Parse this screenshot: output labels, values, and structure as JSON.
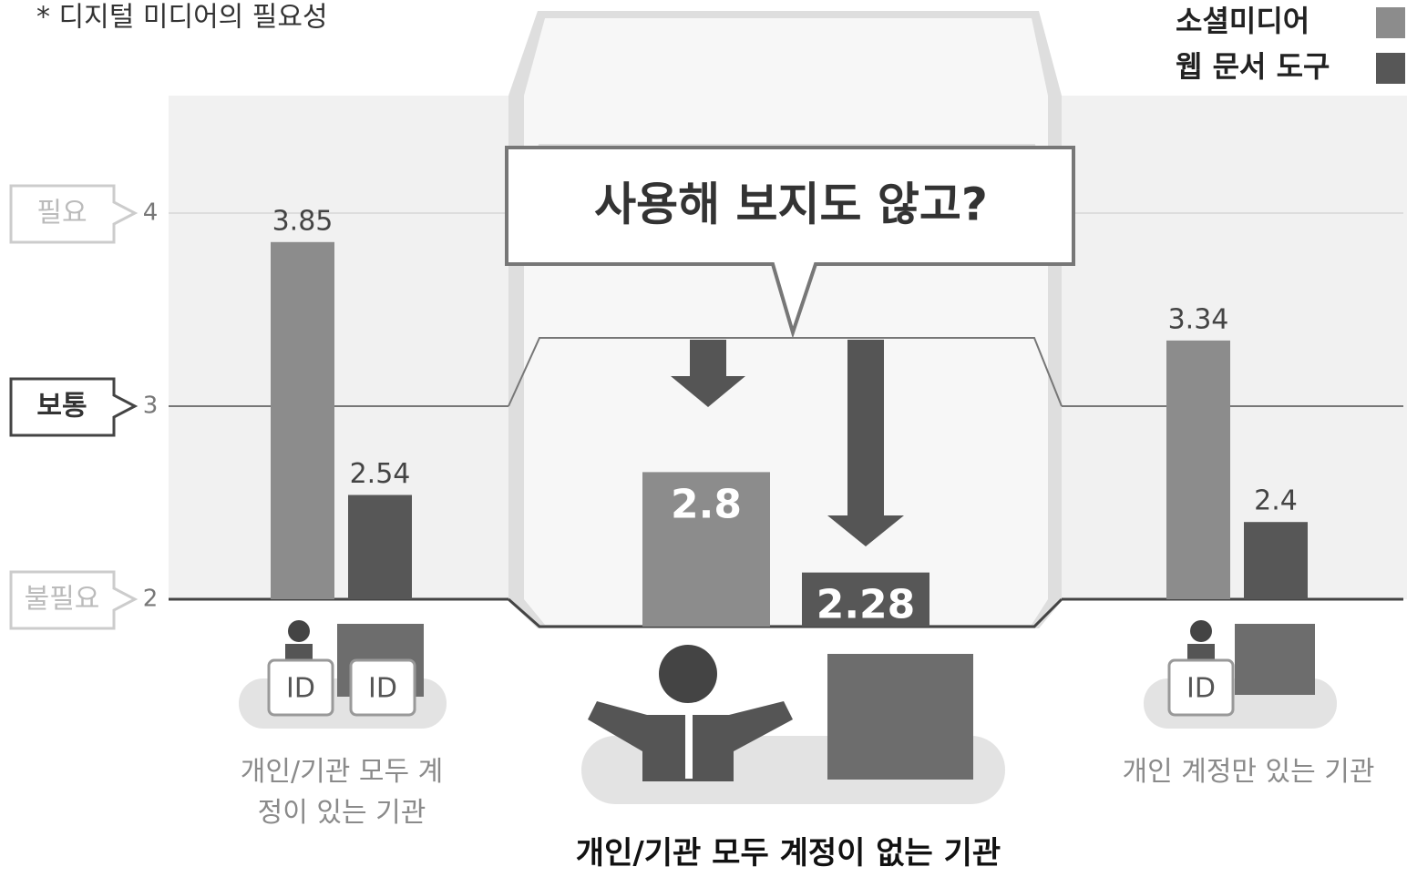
{
  "chart_data": {
    "type": "bar",
    "title": "* 디지털 미디어의 필요성",
    "annotation": "사용해 보지도 않고?",
    "categories": [
      "개인/기관 모두 계정이 있는 기관",
      "개인/기관 모두 계정이 없는 기관",
      "개인 계정만 있는 기관"
    ],
    "series": [
      {
        "name": "소셜미디어",
        "color": "#8c8c8c",
        "values": [
          3.85,
          2.8,
          3.34
        ]
      },
      {
        "name": "웹 문서 도구",
        "color": "#575757",
        "values": [
          2.54,
          2.28,
          2.4
        ]
      }
    ],
    "ylim": [
      2,
      4.5
    ],
    "yticks": [
      2,
      3,
      4
    ],
    "ytick_names": [
      "불필요",
      "보통",
      "필요"
    ],
    "id_badge": "ID",
    "legend": "top-right",
    "grid": true
  }
}
